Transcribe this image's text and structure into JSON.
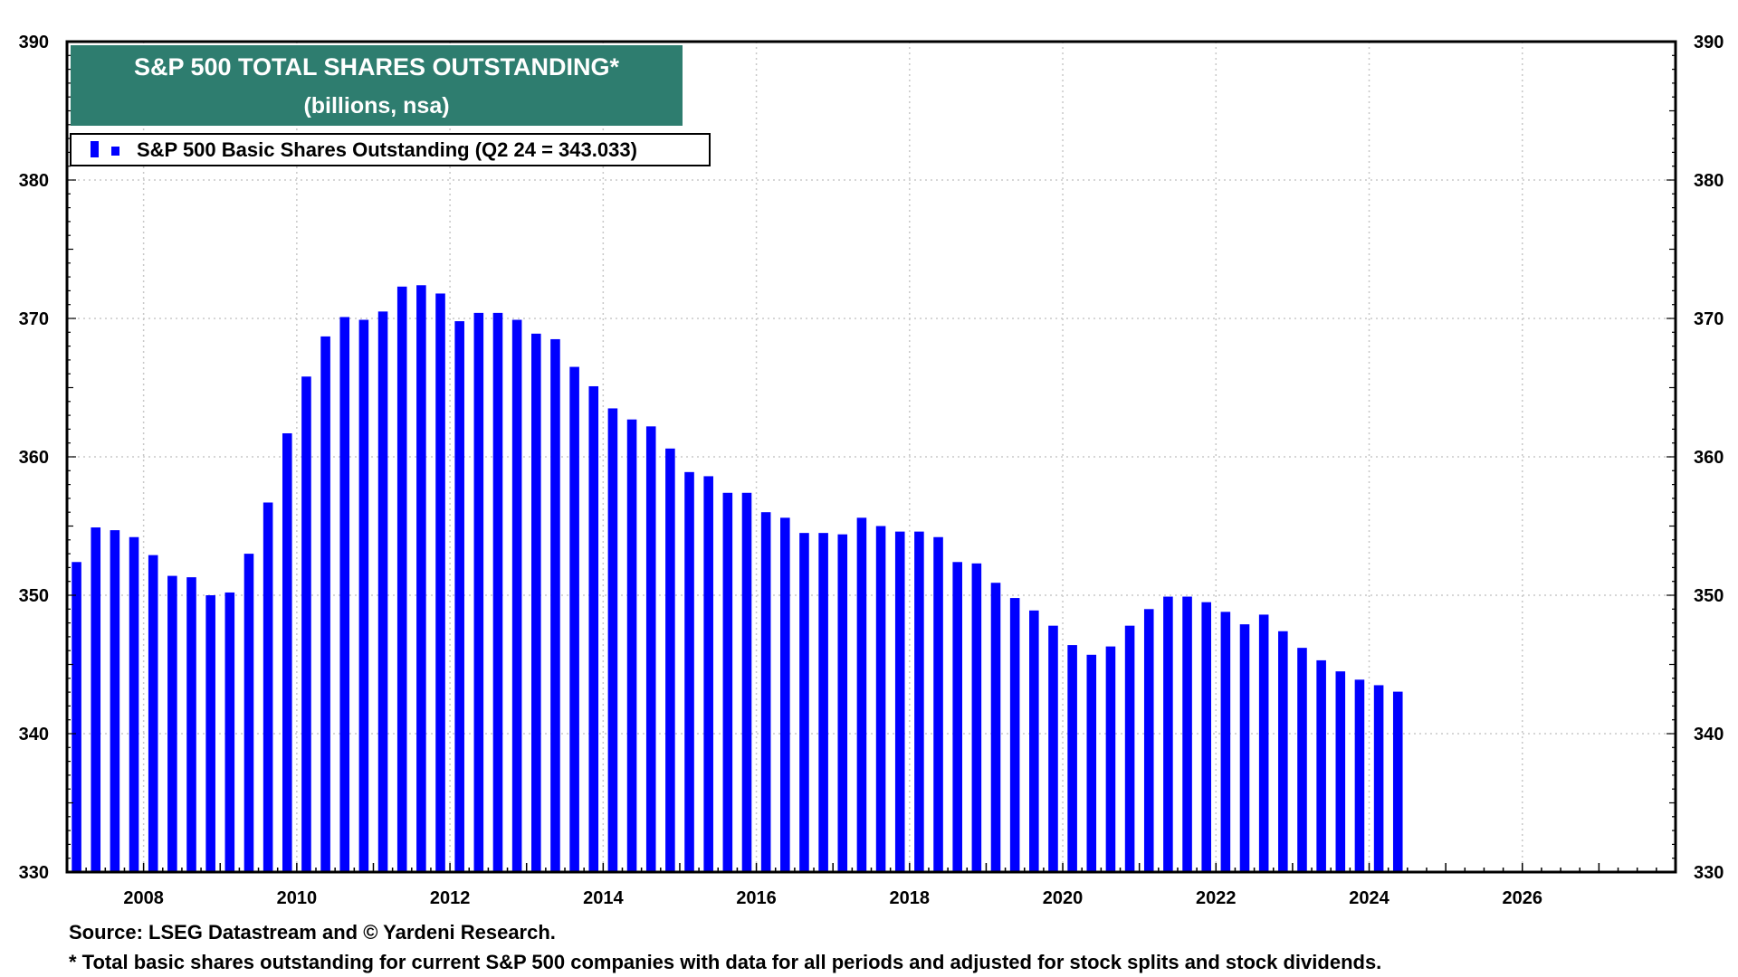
{
  "colors": {
    "bar": "#0000ff",
    "title_bg": "#2e7d6f",
    "grid": "#c8c8c8"
  },
  "chart_data": {
    "type": "bar",
    "title": "S&P 500 TOTAL SHARES OUTSTANDING*",
    "subtitle": "(billions, nsa)",
    "legend": "S&P 500 Basic Shares Outstanding (Q2 24 = 343.033)",
    "legend_placement": "top-left",
    "grid": true,
    "ylim": [
      330,
      390
    ],
    "y_ticks": [
      "330",
      "340",
      "350",
      "360",
      "370",
      "380",
      "390"
    ],
    "xlim": [
      2007.0,
      2028.0
    ],
    "x_ticks": [
      "2008",
      "2010",
      "2012",
      "2014",
      "2016",
      "2018",
      "2020",
      "2022",
      "2024",
      "2026"
    ],
    "series": [
      {
        "name": "S&P 500 Basic Shares Outstanding",
        "points": [
          {
            "x": "2007 Q1",
            "y": 352.4
          },
          {
            "x": "2007 Q2",
            "y": 354.9
          },
          {
            "x": "2007 Q3",
            "y": 354.7
          },
          {
            "x": "2007 Q4",
            "y": 354.2
          },
          {
            "x": "2008 Q1",
            "y": 352.9
          },
          {
            "x": "2008 Q2",
            "y": 351.4
          },
          {
            "x": "2008 Q3",
            "y": 351.3
          },
          {
            "x": "2008 Q4",
            "y": 350.0
          },
          {
            "x": "2009 Q1",
            "y": 350.2
          },
          {
            "x": "2009 Q2",
            "y": 353.0
          },
          {
            "x": "2009 Q3",
            "y": 356.7
          },
          {
            "x": "2009 Q4",
            "y": 361.7
          },
          {
            "x": "2010 Q1",
            "y": 365.8
          },
          {
            "x": "2010 Q2",
            "y": 368.7
          },
          {
            "x": "2010 Q3",
            "y": 370.1
          },
          {
            "x": "2010 Q4",
            "y": 369.9
          },
          {
            "x": "2011 Q1",
            "y": 370.5
          },
          {
            "x": "2011 Q2",
            "y": 372.3
          },
          {
            "x": "2011 Q3",
            "y": 372.4
          },
          {
            "x": "2011 Q4",
            "y": 371.8
          },
          {
            "x": "2012 Q1",
            "y": 369.8
          },
          {
            "x": "2012 Q2",
            "y": 370.4
          },
          {
            "x": "2012 Q3",
            "y": 370.4
          },
          {
            "x": "2012 Q4",
            "y": 369.9
          },
          {
            "x": "2013 Q1",
            "y": 368.9
          },
          {
            "x": "2013 Q2",
            "y": 368.5
          },
          {
            "x": "2013 Q3",
            "y": 366.5
          },
          {
            "x": "2013 Q4",
            "y": 365.1
          },
          {
            "x": "2014 Q1",
            "y": 363.5
          },
          {
            "x": "2014 Q2",
            "y": 362.7
          },
          {
            "x": "2014 Q3",
            "y": 362.2
          },
          {
            "x": "2014 Q4",
            "y": 360.6
          },
          {
            "x": "2015 Q1",
            "y": 358.9
          },
          {
            "x": "2015 Q2",
            "y": 358.6
          },
          {
            "x": "2015 Q3",
            "y": 357.4
          },
          {
            "x": "2015 Q4",
            "y": 357.4
          },
          {
            "x": "2016 Q1",
            "y": 356.0
          },
          {
            "x": "2016 Q2",
            "y": 355.6
          },
          {
            "x": "2016 Q3",
            "y": 354.5
          },
          {
            "x": "2016 Q4",
            "y": 354.5
          },
          {
            "x": "2017 Q1",
            "y": 354.4
          },
          {
            "x": "2017 Q2",
            "y": 355.6
          },
          {
            "x": "2017 Q3",
            "y": 355.0
          },
          {
            "x": "2017 Q4",
            "y": 354.6
          },
          {
            "x": "2018 Q1",
            "y": 354.6
          },
          {
            "x": "2018 Q2",
            "y": 354.2
          },
          {
            "x": "2018 Q3",
            "y": 352.4
          },
          {
            "x": "2018 Q4",
            "y": 352.3
          },
          {
            "x": "2019 Q1",
            "y": 350.9
          },
          {
            "x": "2019 Q2",
            "y": 349.8
          },
          {
            "x": "2019 Q3",
            "y": 348.9
          },
          {
            "x": "2019 Q4",
            "y": 347.8
          },
          {
            "x": "2020 Q1",
            "y": 346.4
          },
          {
            "x": "2020 Q2",
            "y": 345.7
          },
          {
            "x": "2020 Q3",
            "y": 346.3
          },
          {
            "x": "2020 Q4",
            "y": 347.8
          },
          {
            "x": "2021 Q1",
            "y": 349.0
          },
          {
            "x": "2021 Q2",
            "y": 349.9
          },
          {
            "x": "2021 Q3",
            "y": 349.9
          },
          {
            "x": "2021 Q4",
            "y": 349.5
          },
          {
            "x": "2022 Q1",
            "y": 348.8
          },
          {
            "x": "2022 Q2",
            "y": 347.9
          },
          {
            "x": "2022 Q3",
            "y": 348.6
          },
          {
            "x": "2022 Q4",
            "y": 347.4
          },
          {
            "x": "2023 Q1",
            "y": 346.2
          },
          {
            "x": "2023 Q2",
            "y": 345.3
          },
          {
            "x": "2023 Q3",
            "y": 344.5
          },
          {
            "x": "2023 Q4",
            "y": 343.9
          },
          {
            "x": "2024 Q1",
            "y": 343.5
          },
          {
            "x": "2024 Q2",
            "y": 343.033
          }
        ]
      }
    ]
  },
  "footer": {
    "source": "Source: LSEG Datastream and © Yardeni Research.",
    "note": "* Total basic shares outstanding for current S&P 500 companies with data for all periods and adjusted for stock splits and stock dividends."
  }
}
